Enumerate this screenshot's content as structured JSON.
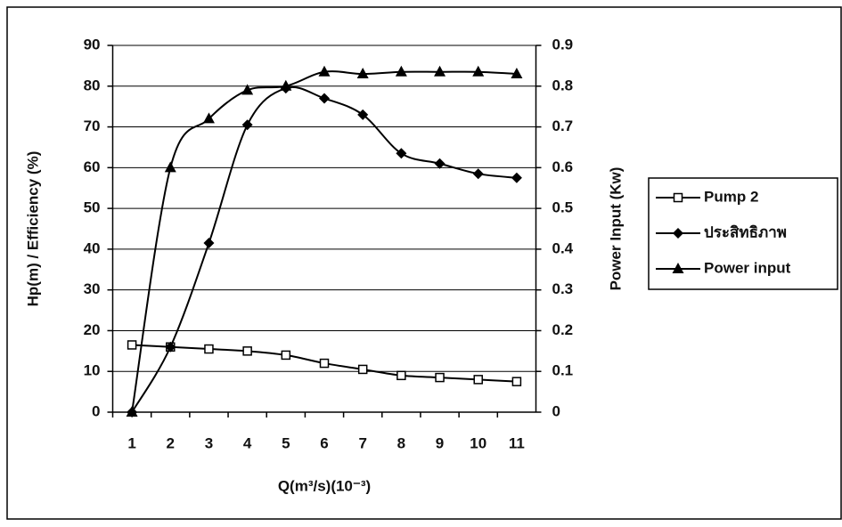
{
  "chart_data": {
    "type": "line",
    "x_label": "Q(m³/s)(10⁻³)",
    "y_label": "Hp(m) / Efficiency (%)",
    "y2_label": "Power Input (Kw)",
    "categories": [
      1,
      2,
      3,
      4,
      5,
      6,
      7,
      8,
      9,
      10,
      11
    ],
    "series": [
      {
        "name": "Pump 2",
        "color": "#000000",
        "marker": "square-open",
        "values": [
          16.5,
          16,
          15.5,
          15,
          14,
          12,
          10.5,
          9,
          8.5,
          8,
          7.5
        ]
      },
      {
        "name": "ประสิทธิภาพ",
        "color": "#000000",
        "marker": "diamond",
        "values": [
          0,
          16,
          41.5,
          70.5,
          79.5,
          77,
          73,
          63.5,
          61,
          58.5,
          57.5
        ]
      },
      {
        "name": "Power input",
        "color": "#000000",
        "marker": "triangle",
        "axis": "y2",
        "values": [
          0,
          0.6,
          0.72,
          0.79,
          0.8,
          0.835,
          0.83,
          0.835,
          0.835,
          0.835,
          0.83
        ]
      }
    ],
    "ylim": [
      0,
      90
    ],
    "yticks": [
      0,
      10,
      20,
      30,
      40,
      50,
      60,
      70,
      80,
      90
    ],
    "y2lim": [
      0,
      0.9
    ],
    "y2ticks": [
      0,
      0.1,
      0.2,
      0.3,
      0.4,
      0.5,
      0.6,
      0.7,
      0.8,
      0.9
    ],
    "grid": true,
    "legend": "right"
  }
}
